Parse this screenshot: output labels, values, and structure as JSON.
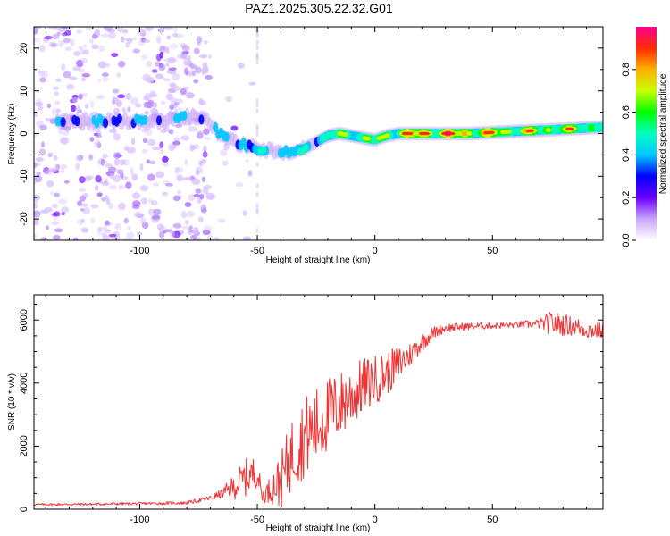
{
  "title": "PAZ1.2025.305.22.32.G01",
  "chart_data": [
    {
      "id": "spectrogram",
      "type": "heatmap",
      "xlabel": "Height of straight line (km)",
      "ylabel": "Frequency (Hz)",
      "xlim": [
        -145,
        97
      ],
      "ylim": [
        -25,
        25
      ],
      "xticks": [
        -100,
        -50,
        0,
        50
      ],
      "yticks": [
        -20,
        -10,
        0,
        10,
        20
      ],
      "grid": false,
      "colorbar": {
        "label": "Normalized spectral amplitude",
        "range": [
          0,
          1
        ],
        "ticks": [
          0.0,
          0.2,
          0.4,
          0.6,
          0.8
        ],
        "tick_labels": [
          "0.0",
          "0.2",
          "0.4",
          "0.6",
          "0.8"
        ],
        "colors": [
          "#ffffff",
          "#c9a6ff",
          "#6a00ff",
          "#0000ff",
          "#00c8ff",
          "#00ffc0",
          "#00ff00",
          "#c8ff00",
          "#ffb000",
          "#ff2a00",
          "#ff0090"
        ]
      },
      "ridge_x": [
        -135,
        -120,
        -105,
        -90,
        -80,
        -72,
        -66,
        -60,
        -50,
        -40,
        -30,
        -25,
        -20,
        -15,
        -10,
        -5,
        0,
        5,
        10,
        20,
        40,
        60,
        80,
        97
      ],
      "ridge_freq": [
        3,
        3,
        3,
        3,
        4,
        3.5,
        0,
        -2,
        -3.5,
        -4.5,
        -3.5,
        -2,
        -0.5,
        0,
        -0.5,
        -1,
        -1.5,
        -0.5,
        0,
        0,
        0,
        0.5,
        1,
        1.5
      ],
      "ridge_amplitude": [
        0.25,
        0.3,
        0.3,
        0.3,
        0.3,
        0.3,
        0.3,
        0.35,
        0.35,
        0.35,
        0.4,
        0.45,
        0.5,
        0.6,
        0.6,
        0.6,
        0.65,
        0.7,
        0.8,
        0.95,
        0.9,
        0.75,
        0.75,
        0.7
      ],
      "noise_region_x": [
        -145,
        -70
      ]
    },
    {
      "id": "snr",
      "type": "line",
      "xlabel": "Height of straight line (km)",
      "ylabel": "SNR (10 * v/v)",
      "xlim": [
        -145,
        97
      ],
      "ylim": [
        0,
        6800
      ],
      "xticks": [
        -100,
        -50,
        0,
        50
      ],
      "yticks": [
        0,
        2000,
        4000,
        6000
      ],
      "grid": false,
      "color": "#ee3333",
      "series": [
        {
          "name": "SNR",
          "x": [
            -145,
            -120,
            -100,
            -80,
            -70,
            -65,
            -60,
            -55,
            -50,
            -48,
            -45,
            -40,
            -35,
            -30,
            -25,
            -20,
            -15,
            -10,
            -5,
            0,
            5,
            10,
            15,
            20,
            25,
            30,
            40,
            50,
            60,
            70,
            75,
            80,
            85,
            90,
            97
          ],
          "values": [
            150,
            160,
            180,
            200,
            350,
            500,
            700,
            1000,
            1200,
            400,
            600,
            900,
            1800,
            2300,
            2600,
            3000,
            3300,
            3600,
            3900,
            4100,
            4300,
            4600,
            4900,
            5300,
            5600,
            5750,
            5800,
            5820,
            5850,
            5880,
            5900,
            5850,
            5800,
            5700,
            5650
          ],
          "spread": [
            30,
            40,
            40,
            50,
            80,
            150,
            400,
            600,
            500,
            200,
            400,
            900,
            1200,
            1300,
            1300,
            1200,
            1100,
            1000,
            900,
            800,
            700,
            600,
            400,
            300,
            200,
            150,
            120,
            100,
            100,
            150,
            400,
            350,
            300,
            300,
            250
          ]
        }
      ]
    }
  ]
}
